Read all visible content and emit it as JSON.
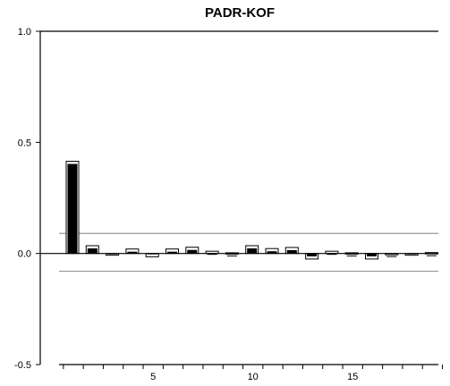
{
  "chart_data": {
    "type": "bar",
    "title": "PADR-KOF",
    "xlabel": "",
    "ylabel": "",
    "x": [
      1,
      2,
      3,
      4,
      5,
      6,
      7,
      8,
      9,
      10,
      11,
      12,
      13,
      14,
      15,
      16,
      17,
      18,
      19
    ],
    "values": [
      0.415,
      0.035,
      -0.008,
      0.02,
      -0.015,
      0.02,
      0.028,
      0.01,
      0.003,
      0.035,
      0.022,
      0.027,
      -0.025,
      0.01,
      0.003,
      -0.025,
      0.0,
      -0.008,
      0.004
    ],
    "ylim": [
      -0.5,
      1.0
    ],
    "yticks": [
      1.0,
      0.5,
      0.0,
      -0.5
    ],
    "ytick_labels": [
      "1.0",
      "0.5",
      "0.0",
      "-0.5"
    ],
    "xticks_labeled": [
      5,
      10,
      15
    ],
    "xtick_labels": [
      "5",
      "10",
      "15"
    ],
    "confidence_bands": [
      0.09,
      -0.08
    ],
    "grid": false,
    "colors": {
      "bar_fill": "#000000",
      "band": "#999999",
      "axis": "#000000"
    }
  }
}
